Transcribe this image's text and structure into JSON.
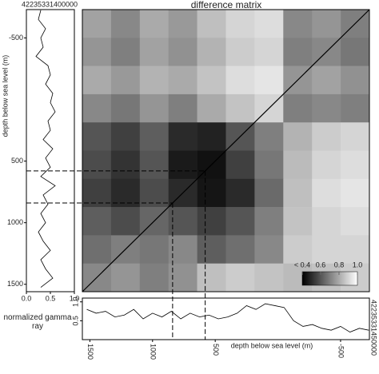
{
  "chart_data": [
    {
      "type": "heatmap",
      "title": "difference matrix",
      "matrix": [
        [
          0.78,
          0.72,
          0.8,
          0.76,
          0.85,
          0.9,
          0.92,
          0.72,
          0.75,
          0.7
        ],
        [
          0.75,
          0.7,
          0.78,
          0.74,
          0.82,
          0.88,
          0.9,
          0.7,
          0.72,
          0.68
        ],
        [
          0.8,
          0.76,
          0.82,
          0.8,
          0.86,
          0.92,
          0.94,
          0.75,
          0.78,
          0.74
        ],
        [
          0.72,
          0.68,
          0.75,
          0.7,
          0.8,
          0.86,
          0.9,
          0.7,
          0.72,
          0.7
        ],
        [
          0.6,
          0.55,
          0.62,
          0.5,
          0.48,
          0.6,
          0.7,
          0.82,
          0.88,
          0.9
        ],
        [
          0.58,
          0.52,
          0.6,
          0.46,
          0.44,
          0.55,
          0.68,
          0.84,
          0.9,
          0.92
        ],
        [
          0.55,
          0.5,
          0.58,
          0.5,
          0.45,
          0.5,
          0.65,
          0.85,
          0.92,
          0.94
        ],
        [
          0.62,
          0.58,
          0.64,
          0.6,
          0.55,
          0.6,
          0.7,
          0.86,
          0.9,
          0.92
        ],
        [
          0.66,
          0.7,
          0.68,
          0.72,
          0.62,
          0.66,
          0.72,
          0.88,
          0.9,
          0.9
        ],
        [
          0.72,
          0.75,
          0.7,
          0.74,
          0.85,
          0.88,
          0.86,
          0.84,
          0.86,
          0.88
        ]
      ],
      "clim": [
        0.4,
        1.0
      ],
      "cticks": [
        {
          "value": 0.4,
          "label": "< 0.4"
        },
        0.6,
        0.8,
        {
          "value": 1.0,
          "label": "1.0"
        }
      ],
      "markers": [
        580,
        840
      ]
    },
    {
      "type": "line",
      "title": "42235331400000",
      "ylabel": "depth below sea level (m)",
      "depth": [
        -725,
        -650,
        -575,
        -500,
        -425,
        -350,
        -275,
        -200,
        -125,
        -50,
        25,
        100,
        175,
        250,
        325,
        400,
        475,
        550,
        625,
        700,
        775,
        850,
        925,
        1000,
        1075,
        1150,
        1225,
        1300,
        1375,
        1450,
        1525
      ],
      "values": [
        0.3,
        0.25,
        0.4,
        0.3,
        0.35,
        0.2,
        0.45,
        0.5,
        0.4,
        0.55,
        0.5,
        0.6,
        0.45,
        0.5,
        0.35,
        0.55,
        0.4,
        0.5,
        0.3,
        0.6,
        0.35,
        0.45,
        0.3,
        0.4,
        0.25,
        0.35,
        0.5,
        0.3,
        0.4,
        0.55,
        0.3
      ],
      "ylim": [
        -730,
        1560
      ],
      "yticks": [
        -500,
        500,
        1000,
        1500
      ],
      "xlim": [
        0,
        1
      ],
      "xticks": [
        {
          "value": 0,
          "label": "0.0"
        },
        0.5,
        {
          "value": 1,
          "label": "1.0"
        }
      ]
    },
    {
      "type": "line",
      "title": "42235331450000",
      "ylabel": "normalized gamma ray",
      "xlabel": "depth below sea level (m)",
      "depth": [
        -725,
        -650,
        -575,
        -500,
        -425,
        -350,
        -275,
        -200,
        -125,
        -50,
        25,
        100,
        175,
        250,
        325,
        400,
        475,
        550,
        625,
        700,
        775,
        850,
        925,
        1000,
        1075,
        1150,
        1225,
        1300,
        1375,
        1450,
        1525
      ],
      "values": [
        0.25,
        0.3,
        0.2,
        0.35,
        0.25,
        0.3,
        0.4,
        0.35,
        0.5,
        0.85,
        0.9,
        0.95,
        0.8,
        0.9,
        0.7,
        0.6,
        0.55,
        0.65,
        0.6,
        0.7,
        0.55,
        0.75,
        0.6,
        0.7,
        0.55,
        0.8,
        0.65,
        0.6,
        0.75,
        0.7,
        0.8
      ],
      "xlim": [
        1560,
        -730
      ],
      "xticks": [
        1500,
        1000,
        500,
        -500
      ],
      "ylim": [
        0,
        1.1
      ],
      "yticks": [
        0.5,
        {
          "value": 1,
          "label": "1.0"
        }
      ]
    }
  ]
}
